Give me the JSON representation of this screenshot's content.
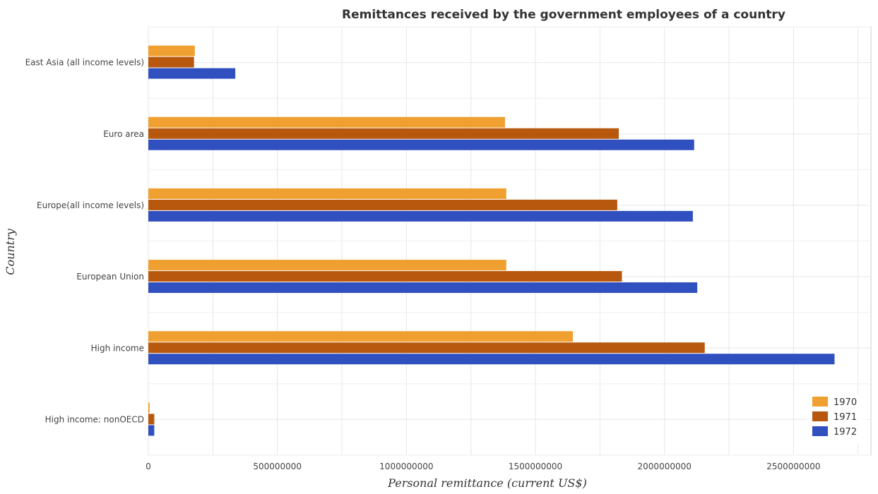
{
  "chart_data": {
    "type": "bar",
    "orientation": "horizontal",
    "title": "Remittances received by the government employees of a country",
    "xlabel": "Personal remittance (current US$)",
    "ylabel": "Country",
    "categories": [
      "East Asia (all income levels)",
      "Euro area",
      "Europe(all income levels)",
      "European Union",
      "High income",
      "High income: nonOECD"
    ],
    "series": [
      {
        "name": "1970",
        "color": "#f0a030",
        "values": [
          180000000,
          1382000000,
          1387000000,
          1387000000,
          1645000000,
          5000000
        ]
      },
      {
        "name": "1971",
        "color": "#b8580f",
        "values": [
          177000000,
          1823000000,
          1817000000,
          1835000000,
          2156000000,
          23000000
        ]
      },
      {
        "name": "1972",
        "color": "#3050c0",
        "values": [
          337000000,
          2115000000,
          2110000000,
          2127000000,
          2659000000,
          23000000
        ]
      }
    ],
    "xlim": [
      0,
      2800000000
    ],
    "xticks": [
      0,
      500000000,
      1000000000,
      1500000000,
      2000000000,
      2500000000
    ],
    "xtick_labels": [
      "0",
      "500000000",
      "1000000000",
      "1500000000",
      "2000000000",
      "2500000000"
    ],
    "grid": true,
    "legend_position": "bottom-right"
  }
}
